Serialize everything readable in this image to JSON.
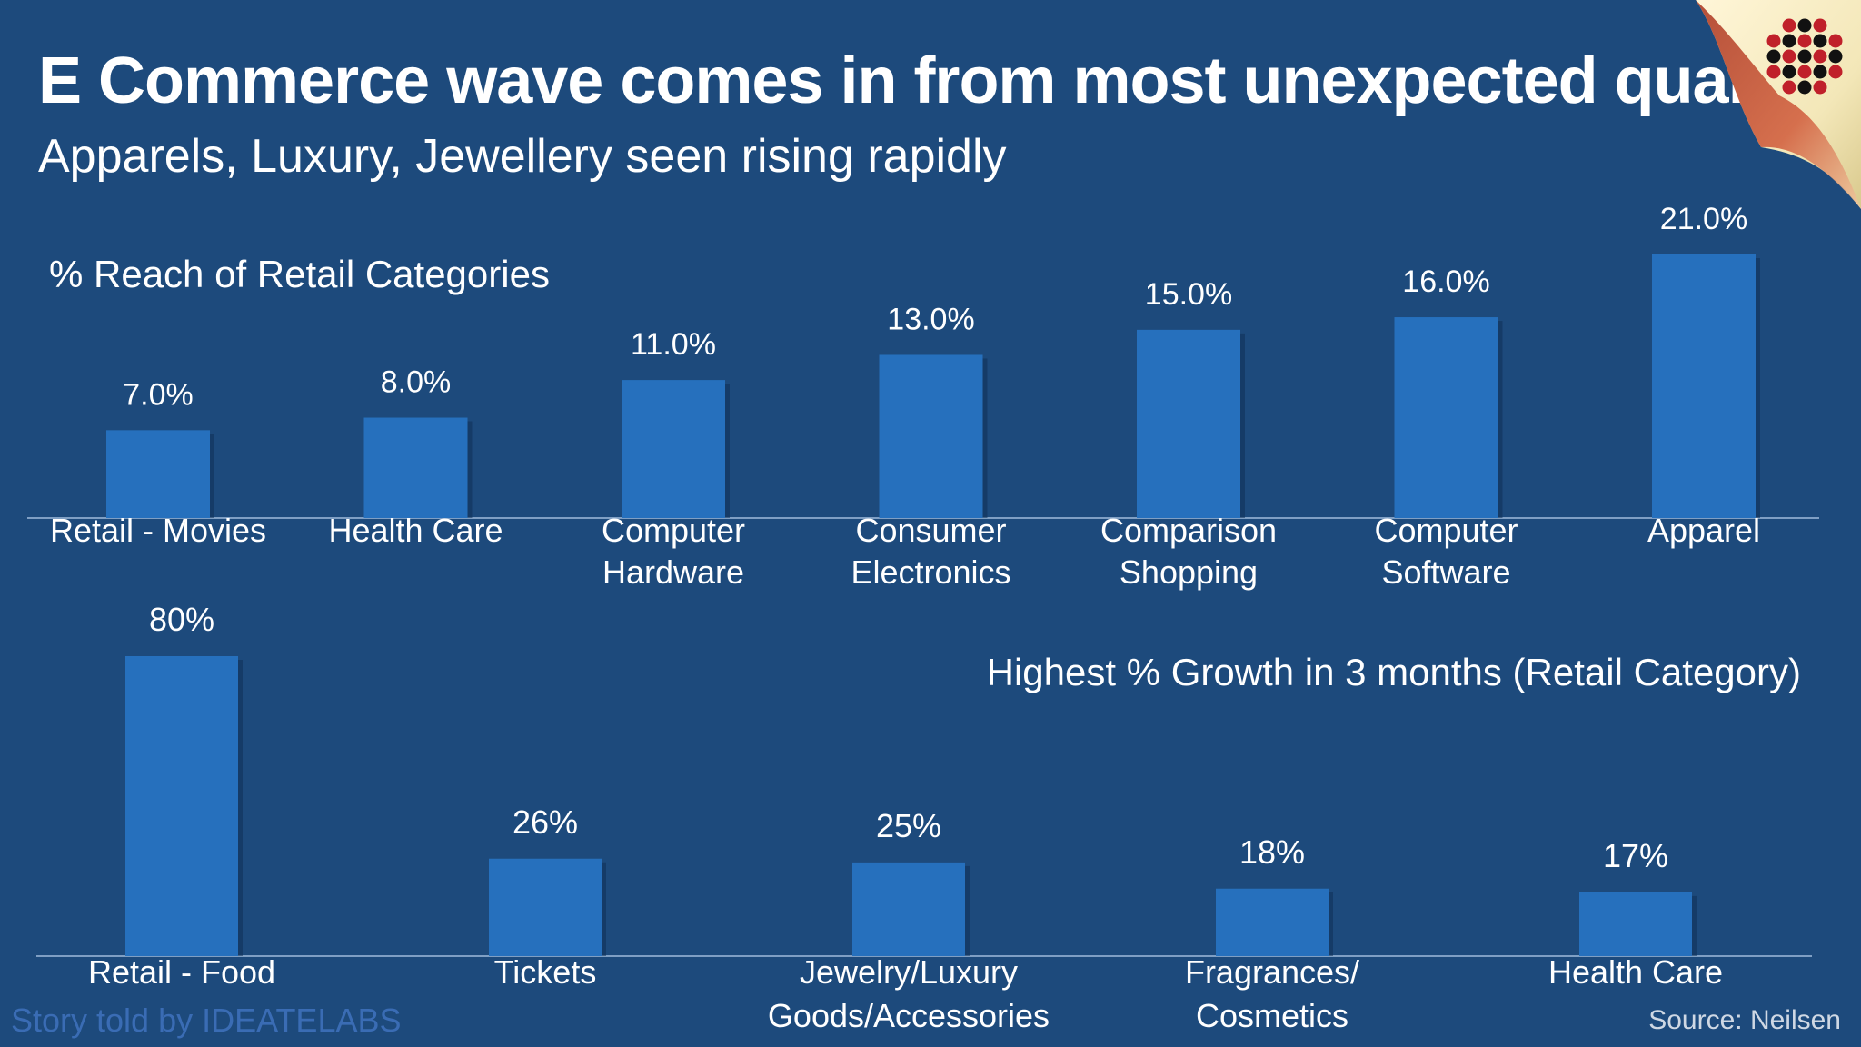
{
  "header": {
    "title": "E Commerce wave comes in from most unexpected quarters",
    "subtitle": "Apparels, Luxury, Jewellery seen rising rapidly"
  },
  "footer": {
    "credit": "Story told by IDEATELABS",
    "source": "Source: Neilsen"
  },
  "colors": {
    "background": "#1d4a7c",
    "bar": "#2670bd",
    "axis": "#7f9fc4"
  },
  "chart_data": [
    {
      "type": "bar",
      "title": "% Reach of Retail Categories",
      "categories": [
        [
          "Retail - Movies"
        ],
        [
          "Health Care"
        ],
        [
          "Computer",
          "Hardware"
        ],
        [
          "Consumer",
          "Electronics"
        ],
        [
          "Comparison",
          "Shopping"
        ],
        [
          "Computer",
          "Software"
        ],
        [
          "Apparel"
        ]
      ],
      "values": [
        7.0,
        8.0,
        11.0,
        13.0,
        15.0,
        16.0,
        21.0
      ],
      "data_labels": [
        "7.0%",
        "8.0%",
        "11.0%",
        "13.0%",
        "15.0%",
        "16.0%",
        "21.0%"
      ],
      "ylim": [
        0,
        21.0
      ],
      "grid": false,
      "legend": "none"
    },
    {
      "type": "bar",
      "title": "Highest % Growth in 3 months (Retail Category)",
      "categories": [
        [
          "Retail - Food"
        ],
        [
          "Tickets"
        ],
        [
          "Jewelry/Luxury",
          "Goods/Accessories"
        ],
        [
          "Fragrances/",
          "Cosmetics"
        ],
        [
          "Health Care"
        ]
      ],
      "values": [
        80,
        26,
        25,
        18,
        17
      ],
      "data_labels": [
        "80%",
        "26%",
        "25%",
        "18%",
        "17%"
      ],
      "ylim": [
        0,
        80
      ],
      "grid": false,
      "legend": "none"
    }
  ]
}
